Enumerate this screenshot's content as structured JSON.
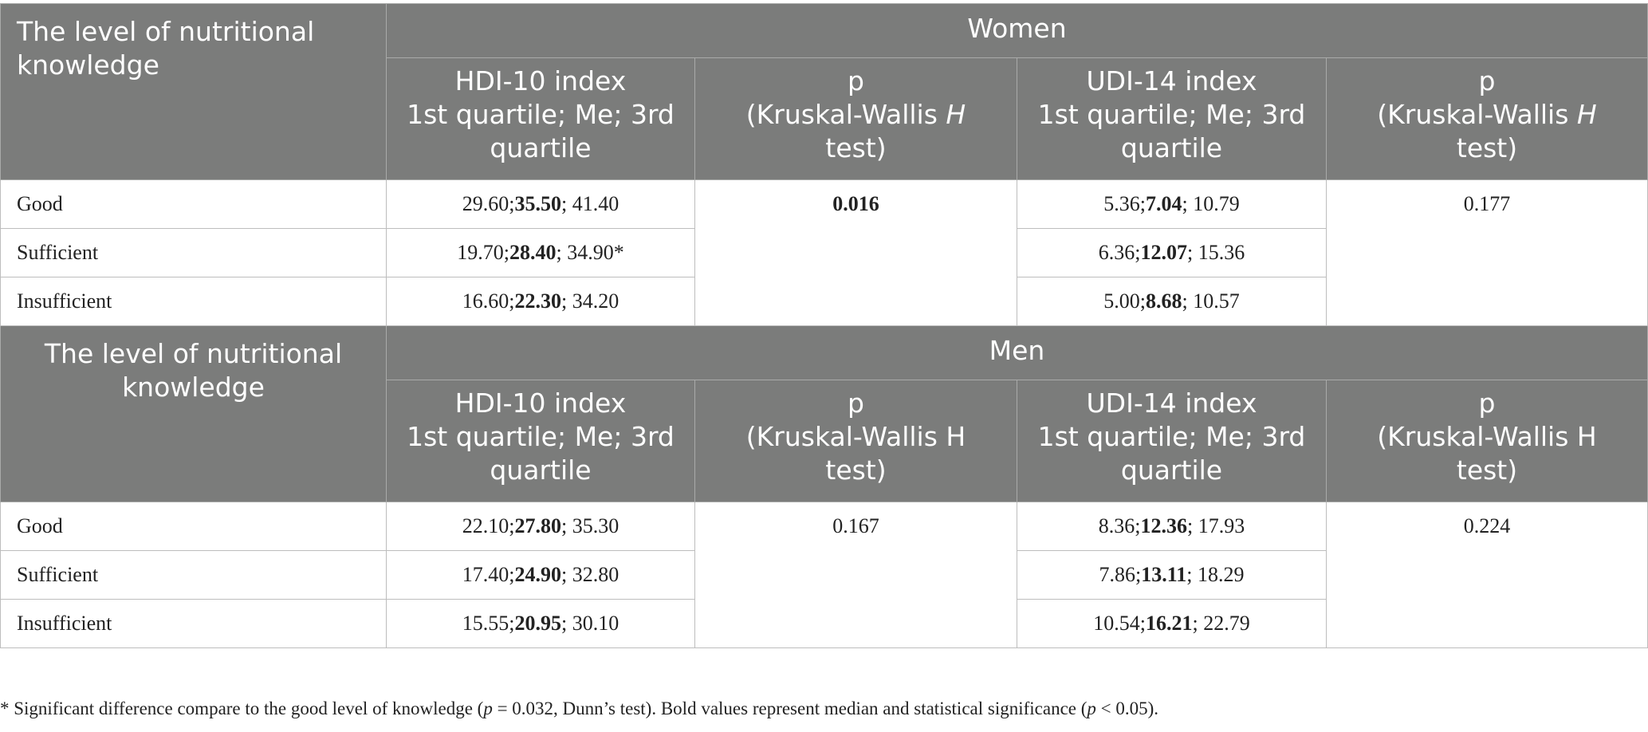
{
  "women": {
    "col_label": "The level of nutritional knowledge",
    "group_label": "Women",
    "hdi_header": [
      "HDI-10 index",
      "1st quartile; Me; 3rd",
      "quartile"
    ],
    "p_header": [
      "p",
      "(Kruskal-Wallis ",
      "H",
      "test)"
    ],
    "udi_header": [
      "UDI-14 index",
      "1st quartile; Me; 3rd",
      "quartile"
    ],
    "rows": [
      {
        "label": "Good",
        "hdi": [
          "29.60;",
          "35.50",
          "; 41.40"
        ],
        "udi": [
          "5.36;",
          "7.04",
          "; 10.79"
        ]
      },
      {
        "label": "Sufficient",
        "hdi": [
          "19.70;",
          "28.40",
          "; 34.90*"
        ],
        "udi": [
          "6.36;",
          "12.07",
          "; 15.36"
        ]
      },
      {
        "label": "Insufficient",
        "hdi": [
          "16.60;",
          "22.30",
          "; 34.20"
        ],
        "udi": [
          "5.00;",
          "8.68",
          "; 10.57"
        ]
      }
    ],
    "p_hdi": "0.016",
    "p_udi": "0.177"
  },
  "men": {
    "col_label": "The level of nutritional knowledge",
    "group_label": "Men",
    "hdi_header": [
      "HDI-10 index",
      "1st quartile; Me; 3rd",
      "quartile"
    ],
    "p_header": [
      "p",
      "(Kruskal-Wallis H",
      "test)"
    ],
    "udi_header": [
      "UDI-14 index",
      "1st quartile; Me; 3rd",
      "quartile"
    ],
    "rows": [
      {
        "label": "Good",
        "hdi": [
          "22.10;",
          "27.80",
          "; 35.30"
        ],
        "udi": [
          "8.36;",
          "12.36",
          "; 17.93"
        ]
      },
      {
        "label": "Sufficient",
        "hdi": [
          "17.40;",
          "24.90",
          "; 32.80"
        ],
        "udi": [
          "7.86;",
          "13.11",
          "; 18.29"
        ]
      },
      {
        "label": "Insufficient",
        "hdi": [
          "15.55;",
          "20.95",
          "; 30.10"
        ],
        "udi": [
          "10.54;",
          "16.21",
          "; 22.79"
        ]
      }
    ],
    "p_hdi": "0.167",
    "p_udi": "0.224"
  },
  "footnote": {
    "a": "* Significant difference compare to the good level of knowledge (",
    "p1": "p",
    "b": " = 0.032, Dunn’s test). Bold values represent median and statistical significance (",
    "p2": "p",
    "c": " < 0.05)."
  }
}
